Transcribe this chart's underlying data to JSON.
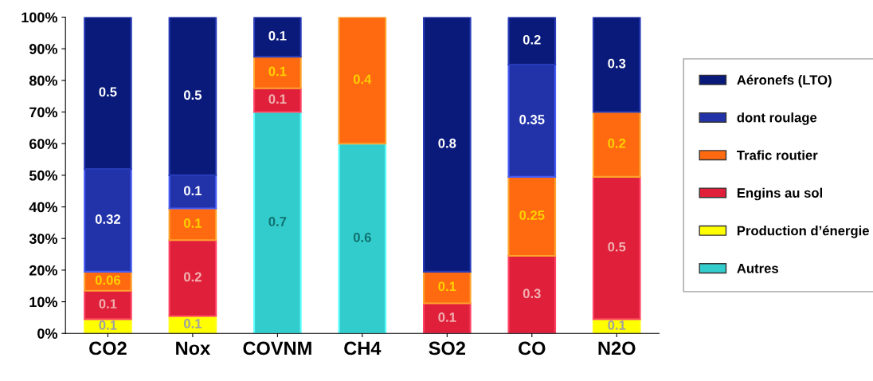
{
  "chart_data": {
    "type": "bar",
    "stacked": true,
    "categories": [
      "CO2",
      "Nox",
      "COVNM",
      "CH4",
      "SO2",
      "CO",
      "N2O"
    ],
    "series": [
      {
        "name": "Autres",
        "color": "#33cccc",
        "values": [
          null,
          null,
          70,
          60,
          null,
          null,
          null
        ]
      },
      {
        "name": "Production d’énergie",
        "color": "#ffff00",
        "values": [
          4.5,
          5.5,
          null,
          null,
          null,
          null,
          4.5
        ]
      },
      {
        "name": "Engins au sol",
        "color": "#e0203a",
        "values": [
          9,
          24,
          7.5,
          null,
          9.5,
          24.5,
          45
        ]
      },
      {
        "name": "Trafic routier",
        "color": "#ff6a10",
        "values": [
          6,
          10,
          10,
          40,
          10,
          25,
          20.5
        ]
      },
      {
        "name": "dont roulage",
        "color": "#2233aa",
        "values": [
          32.5,
          10.5,
          null,
          null,
          null,
          35.5,
          null
        ]
      },
      {
        "name": "Aéronefs (LTO)",
        "color": "#0a1a7a",
        "values": [
          48,
          50,
          12.5,
          null,
          80.5,
          15,
          30
        ]
      }
    ],
    "annotations": [
      "0.1",
      "0.1",
      "0.06",
      "0.32",
      "0.5",
      "0.1",
      "0.2",
      "0.1",
      "0.1",
      "0.5",
      "0.7",
      "0.1",
      "0.1",
      "0.1",
      "0.6",
      "0.4",
      "0.1",
      "0.1",
      "0.8",
      "0.3",
      "0.25",
      "0.35",
      "0.2",
      "0.1",
      "0.5",
      "0.2",
      "0.3"
    ],
    "ylim": [
      0,
      100
    ],
    "yticks": [
      {
        "value": 0,
        "label": "0%"
      },
      {
        "value": 10,
        "label": "10%"
      },
      {
        "value": 20,
        "label": "20%"
      },
      {
        "value": 30,
        "label": "30%"
      },
      {
        "value": 40,
        "label": "40%"
      },
      {
        "value": 50,
        "label": "50%"
      },
      {
        "value": 60,
        "label": "60%"
      },
      {
        "value": 70,
        "label": "70%"
      },
      {
        "value": 80,
        "label": "80%"
      },
      {
        "value": 90,
        "label": "90%"
      },
      {
        "value": 100,
        "label": "100%"
      }
    ],
    "grid": false,
    "legend": "right"
  }
}
